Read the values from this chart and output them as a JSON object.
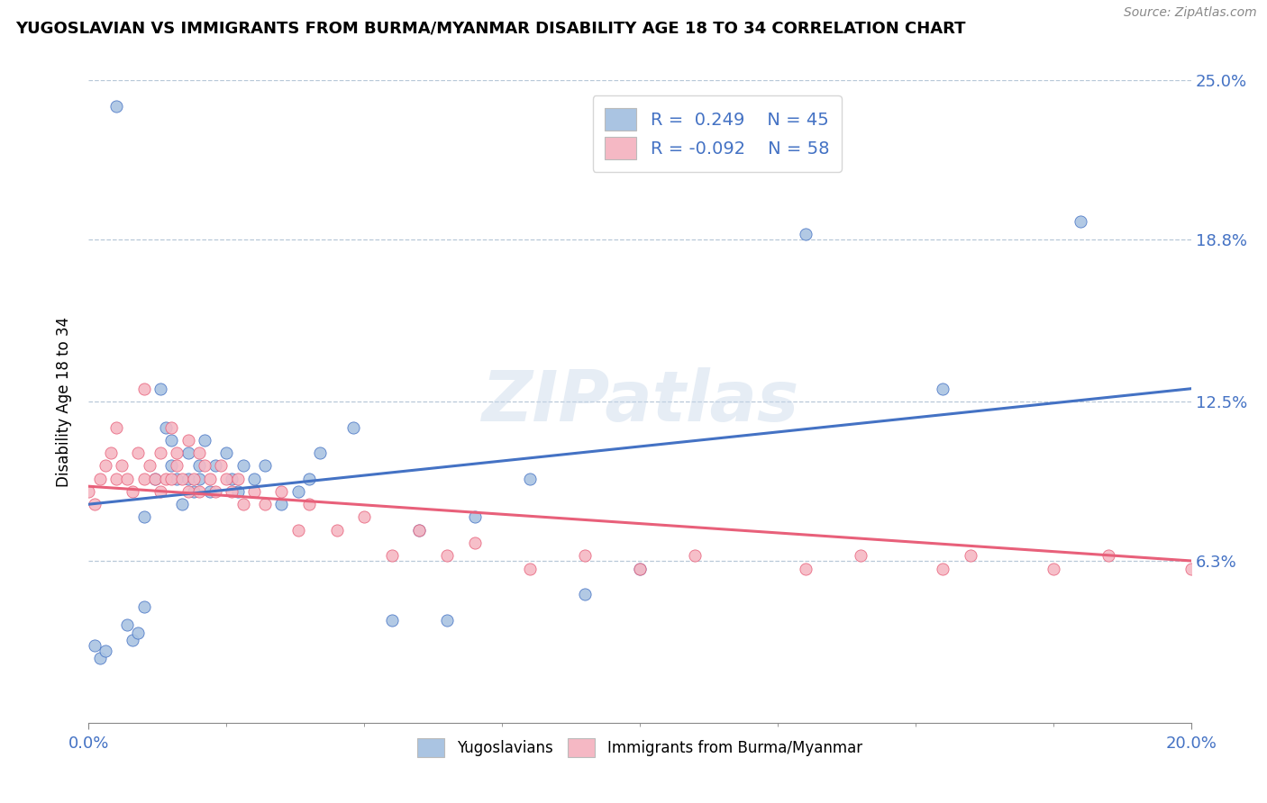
{
  "title": "YUGOSLAVIAN VS IMMIGRANTS FROM BURMA/MYANMAR DISABILITY AGE 18 TO 34 CORRELATION CHART",
  "source": "Source: ZipAtlas.com",
  "ylabel": "Disability Age 18 to 34",
  "xmin": 0.0,
  "xmax": 0.2,
  "ymin": 0.0,
  "ymax": 0.25,
  "yticks": [
    0.063,
    0.125,
    0.188,
    0.25
  ],
  "ytick_labels": [
    "6.3%",
    "12.5%",
    "18.8%",
    "25.0%"
  ],
  "legend_r1": "R =  0.249",
  "legend_n1": "N = 45",
  "legend_r2": "R = -0.092",
  "legend_n2": "N = 58",
  "color_blue": "#aac4e2",
  "color_pink": "#f5b8c4",
  "line_blue": "#4472c4",
  "line_pink": "#e8607a",
  "watermark": "ZIPatlas",
  "blue_points_x": [
    0.001,
    0.002,
    0.003,
    0.005,
    0.007,
    0.008,
    0.009,
    0.01,
    0.01,
    0.012,
    0.013,
    0.014,
    0.015,
    0.015,
    0.016,
    0.017,
    0.018,
    0.018,
    0.019,
    0.02,
    0.02,
    0.021,
    0.022,
    0.023,
    0.025,
    0.026,
    0.027,
    0.028,
    0.03,
    0.032,
    0.035,
    0.038,
    0.04,
    0.042,
    0.048,
    0.055,
    0.06,
    0.065,
    0.07,
    0.08,
    0.09,
    0.1,
    0.13,
    0.155,
    0.18
  ],
  "blue_points_y": [
    0.03,
    0.025,
    0.028,
    0.24,
    0.038,
    0.032,
    0.035,
    0.08,
    0.045,
    0.095,
    0.13,
    0.115,
    0.1,
    0.11,
    0.095,
    0.085,
    0.105,
    0.095,
    0.09,
    0.1,
    0.095,
    0.11,
    0.09,
    0.1,
    0.105,
    0.095,
    0.09,
    0.1,
    0.095,
    0.1,
    0.085,
    0.09,
    0.095,
    0.105,
    0.115,
    0.04,
    0.075,
    0.04,
    0.08,
    0.095,
    0.05,
    0.06,
    0.19,
    0.13,
    0.195
  ],
  "pink_points_x": [
    0.0,
    0.001,
    0.002,
    0.003,
    0.004,
    0.005,
    0.005,
    0.006,
    0.007,
    0.008,
    0.009,
    0.01,
    0.01,
    0.011,
    0.012,
    0.013,
    0.013,
    0.014,
    0.015,
    0.015,
    0.016,
    0.016,
    0.017,
    0.018,
    0.018,
    0.019,
    0.02,
    0.02,
    0.021,
    0.022,
    0.023,
    0.024,
    0.025,
    0.026,
    0.027,
    0.028,
    0.03,
    0.032,
    0.035,
    0.038,
    0.04,
    0.045,
    0.05,
    0.055,
    0.06,
    0.065,
    0.07,
    0.08,
    0.09,
    0.1,
    0.11,
    0.13,
    0.14,
    0.155,
    0.16,
    0.175,
    0.185,
    0.2
  ],
  "pink_points_y": [
    0.09,
    0.085,
    0.095,
    0.1,
    0.105,
    0.095,
    0.115,
    0.1,
    0.095,
    0.09,
    0.105,
    0.095,
    0.13,
    0.1,
    0.095,
    0.105,
    0.09,
    0.095,
    0.115,
    0.095,
    0.1,
    0.105,
    0.095,
    0.09,
    0.11,
    0.095,
    0.09,
    0.105,
    0.1,
    0.095,
    0.09,
    0.1,
    0.095,
    0.09,
    0.095,
    0.085,
    0.09,
    0.085,
    0.09,
    0.075,
    0.085,
    0.075,
    0.08,
    0.065,
    0.075,
    0.065,
    0.07,
    0.06,
    0.065,
    0.06,
    0.065,
    0.06,
    0.065,
    0.06,
    0.065,
    0.06,
    0.065,
    0.06
  ]
}
